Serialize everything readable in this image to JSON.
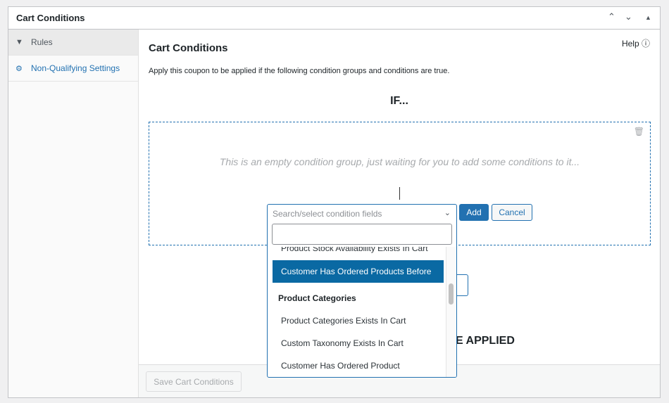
{
  "panel": {
    "title": "Cart Conditions"
  },
  "sidebar": {
    "items": [
      {
        "label": "Rules",
        "icon": "filter-icon"
      },
      {
        "label": "Non-Qualifying Settings",
        "icon": "gear-icon"
      }
    ]
  },
  "main": {
    "title": "Cart Conditions",
    "help": "Help",
    "description": "Apply this coupon to be applied if the following condition groups and conditions are true.",
    "if_label": "IF...",
    "empty_text": "This is an empty condition group, just waiting for you to add some conditions to it...",
    "add_label": "Add",
    "cancel_label": "Cancel",
    "hidden_button_fragment": "p",
    "then_fragment": "E APPLIED",
    "save_label": "Save Cart Conditions"
  },
  "dropdown": {
    "placeholder": "Search/select condition fields",
    "search_value": "",
    "options": [
      {
        "label": "Product Stock Availability Exists In Cart",
        "type": "option"
      },
      {
        "label": "Customer Has Ordered Products Before",
        "type": "option",
        "highlighted": true
      },
      {
        "label": "Product Categories",
        "type": "group"
      },
      {
        "label": "Product Categories Exists In Cart",
        "type": "option"
      },
      {
        "label": "Custom Taxonomy Exists In Cart",
        "type": "option"
      },
      {
        "label": "Customer Has Ordered Product",
        "type": "option"
      }
    ]
  },
  "colors": {
    "accent": "#2271b1",
    "highlight": "#0a69a3"
  }
}
